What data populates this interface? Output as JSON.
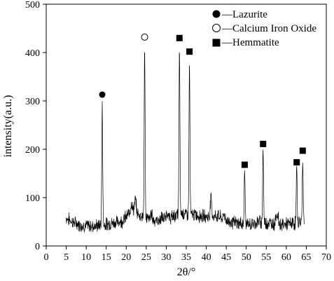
{
  "chart_data": {
    "type": "line",
    "xlabel": "2θ/°",
    "ylabel": "intensity(a.u.)",
    "xlim": [
      0,
      70
    ],
    "ylim": [
      0,
      500
    ],
    "x_ticks": [
      0,
      5,
      10,
      15,
      20,
      25,
      30,
      35,
      40,
      45,
      50,
      55,
      60,
      65,
      70
    ],
    "y_ticks": [
      0,
      100,
      200,
      300,
      400,
      500
    ],
    "grid": false,
    "legend_position": "top-right",
    "legend": [
      {
        "marker": "filled-circle",
        "label": "—Lazurite"
      },
      {
        "marker": "open-circle",
        "label": "—Calcium Iron Oxide"
      },
      {
        "marker": "filled-square",
        "label": "—Hemmatite"
      }
    ],
    "baseline": {
      "x_range": [
        5,
        64.5
      ],
      "points": [
        [
          5,
          58
        ],
        [
          7,
          48
        ],
        [
          9,
          42
        ],
        [
          11,
          41
        ],
        [
          13,
          42
        ],
        [
          15,
          45
        ],
        [
          17,
          48
        ],
        [
          19,
          52
        ],
        [
          20,
          60
        ],
        [
          21,
          70
        ],
        [
          22,
          76
        ],
        [
          23,
          65
        ],
        [
          24,
          62
        ],
        [
          26,
          55
        ],
        [
          27,
          54
        ],
        [
          28,
          52
        ],
        [
          29,
          58
        ],
        [
          30,
          56
        ],
        [
          31,
          58
        ],
        [
          32,
          62
        ],
        [
          34,
          68
        ],
        [
          35,
          66
        ],
        [
          37,
          64
        ],
        [
          39,
          62
        ],
        [
          41,
          60
        ],
        [
          43,
          62
        ],
        [
          45,
          52
        ],
        [
          47,
          48
        ],
        [
          49,
          46
        ],
        [
          51,
          44
        ],
        [
          53,
          50
        ],
        [
          55,
          48
        ],
        [
          57,
          46
        ],
        [
          59,
          44
        ],
        [
          61,
          46
        ],
        [
          63,
          48
        ],
        [
          64.5,
          52
        ]
      ],
      "bumps": [
        [
          21.3,
          90
        ],
        [
          22.3,
          95
        ],
        [
          26.3,
          68
        ],
        [
          30.2,
          72
        ],
        [
          41.2,
          102
        ],
        [
          44.5,
          66
        ],
        [
          57.5,
          64
        ],
        [
          57.9,
          61
        ]
      ]
    },
    "peaks": [
      {
        "x": 14.0,
        "y": 292,
        "phase": "Lazurite"
      },
      {
        "x": 24.6,
        "y": 412,
        "phase": "Calcium Iron Oxide"
      },
      {
        "x": 33.3,
        "y": 412,
        "phase": "Hemmatite"
      },
      {
        "x": 35.8,
        "y": 380,
        "phase": "Hemmatite"
      },
      {
        "x": 49.6,
        "y": 160,
        "phase": "Hemmatite"
      },
      {
        "x": 54.2,
        "y": 203,
        "phase": "Hemmatite"
      },
      {
        "x": 62.6,
        "y": 162,
        "phase": "Hemmatite"
      },
      {
        "x": 64.1,
        "y": 180,
        "phase": "Hemmatite"
      }
    ],
    "markers": [
      {
        "x": 14.0,
        "y": 313,
        "symbol": "filled-circle"
      },
      {
        "x": 24.6,
        "y": 432,
        "symbol": "open-circle"
      },
      {
        "x": 33.3,
        "y": 430,
        "symbol": "filled-square"
      },
      {
        "x": 35.8,
        "y": 402,
        "symbol": "filled-square"
      },
      {
        "x": 49.6,
        "y": 168,
        "symbol": "filled-square"
      },
      {
        "x": 54.2,
        "y": 211,
        "symbol": "filled-square"
      },
      {
        "x": 62.6,
        "y": 173,
        "symbol": "filled-square"
      },
      {
        "x": 64.1,
        "y": 197,
        "symbol": "filled-square"
      }
    ]
  }
}
